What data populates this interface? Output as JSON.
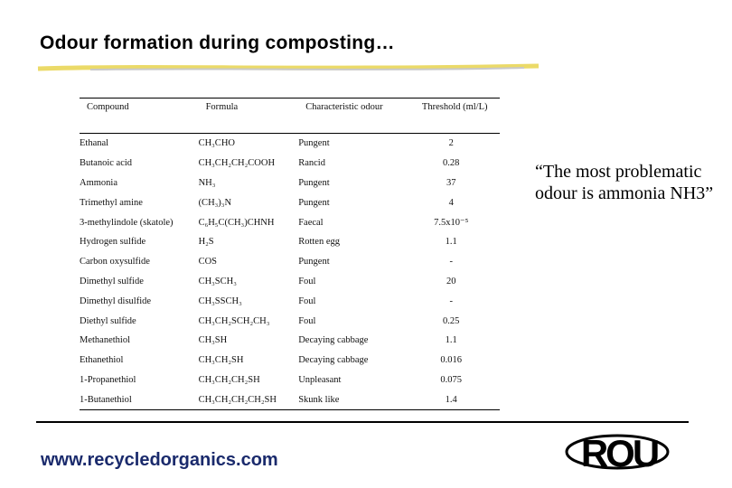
{
  "header": {
    "title": "Odour formation during composting…"
  },
  "table": {
    "columns": [
      "Compound",
      "Formula",
      "Characteristic odour",
      "Threshold (ml/L)"
    ],
    "rows": [
      [
        "Ethanal",
        "CH₃CHO",
        "Pungent",
        "2"
      ],
      [
        "Butanoic acid",
        "CH₃CH₂CH₂COOH",
        "Rancid",
        "0.28"
      ],
      [
        "Ammonia",
        "NH₃",
        "Pungent",
        "37"
      ],
      [
        "Trimethyl amine",
        "(CH₃)₃N",
        "Pungent",
        "4"
      ],
      [
        "3-methylindole (skatole)",
        "C₆H₅C(CH₃)CHNH",
        "Faecal",
        "7.5x10⁻⁵"
      ],
      [
        "Hydrogen sulfide",
        "H₂S",
        "Rotten egg",
        "1.1"
      ],
      [
        "Carbon oxysulfide",
        "COS",
        "Pungent",
        "-"
      ],
      [
        "Dimethyl sulfide",
        "CH₃SCH₃",
        "Foul",
        "20"
      ],
      [
        "Dimethyl disulfide",
        "CH₃SSCH₃",
        "Foul",
        "-"
      ],
      [
        "Diethyl sulfide",
        "CH₃CH₂SCH₂CH₃",
        "Foul",
        "0.25"
      ],
      [
        "Methanethiol",
        "CH₃SH",
        "Decaying cabbage",
        "1.1"
      ],
      [
        "Ethanethiol",
        "CH₃CH₂SH",
        "Decaying cabbage",
        "0.016"
      ],
      [
        "1-Propanethiol",
        "CH₃CH₂CH₂SH",
        "Unpleasant",
        "0.075"
      ],
      [
        "1-Butanethiol",
        "CH₃CH₂CH₂CH₂SH",
        "Skunk like",
        "1.4"
      ]
    ]
  },
  "quote": "“The most problematic odour is ammonia NH3”",
  "footer": {
    "url": "www.recycledorganics.com",
    "logo": "ROU"
  }
}
